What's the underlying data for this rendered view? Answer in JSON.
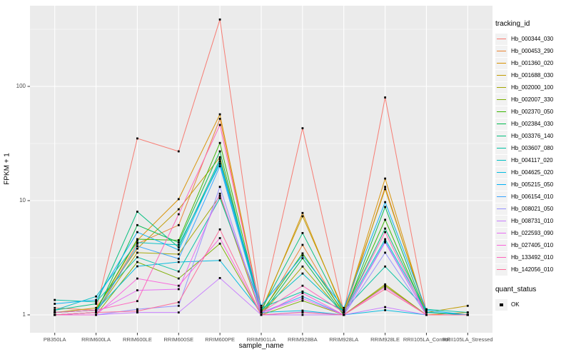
{
  "figure": {
    "panel_bg": "#EBEBEB",
    "grid_color": "#FFFFFF",
    "axis_text_color": "#4D4D4D",
    "tick_mark_color": "#333333",
    "marker_color": "#000000",
    "legend_key_bg": "#F2F2F2"
  },
  "axes": {
    "x_title": "sample_name",
    "y_title": "FPKM + 1",
    "y_tick_values": [
      1,
      10,
      100
    ],
    "y_tick_labels": [
      "1",
      "10",
      "100"
    ],
    "y_minor_values": [
      3.1623,
      31.623,
      316.23
    ]
  },
  "legend": {
    "tracking_title": "tracking_id",
    "quant_title": "quant_status",
    "quant_items": [
      {
        "label": "OK",
        "marker": "black-square"
      }
    ]
  },
  "chart_data": {
    "type": "line",
    "x_scale": "categorical",
    "y_scale": "log10",
    "ylim": [
      0.71,
      500
    ],
    "grid": "on",
    "legend_position": "right",
    "marker": "small-black-square",
    "xlabel": "sample_name",
    "ylabel": "FPKM + 1",
    "categories": [
      "PB350LA",
      "RRIM600LA",
      "RRIM600LE",
      "RRIM600SE",
      "RRIM600PE",
      "RRIM901LA",
      "RRIM928BA",
      "RRIM928LA",
      "RRIM928LE",
      "RRII105LA_Control",
      "RRII105LA_Stressed"
    ],
    "series": [
      {
        "name": "Hb_000344_030",
        "color": "#F8766D",
        "values": [
          1.15,
          1.1,
          35,
          27,
          385,
          1.1,
          43,
          1.05,
          80,
          1.05,
          1.0
        ]
      },
      {
        "name": "Hb_000453_290",
        "color": "#EA8331",
        "values": [
          1.0,
          1.05,
          4.2,
          6.1,
          52,
          1.0,
          4.1,
          1.0,
          13.2,
          1.0,
          1.0
        ]
      },
      {
        "name": "Hb_001360_020",
        "color": "#D89000",
        "values": [
          1.05,
          1.1,
          4.5,
          10.3,
          57,
          1.05,
          7.8,
          1.05,
          15.6,
          1.0,
          1.05
        ]
      },
      {
        "name": "Hb_001688_030",
        "color": "#C09B00",
        "values": [
          1.05,
          1.15,
          3.8,
          8.4,
          24,
          1.1,
          7.3,
          1.1,
          12.6,
          1.05,
          1.2
        ]
      },
      {
        "name": "Hb_002000_100",
        "color": "#A3A500",
        "values": [
          1.0,
          1.05,
          3.5,
          3.4,
          11,
          1.0,
          2.65,
          1.0,
          1.85,
          1.0,
          1.0
        ]
      },
      {
        "name": "Hb_002007_330",
        "color": "#7CAE00",
        "values": [
          1.0,
          1.0,
          2.9,
          2.08,
          4.2,
          1.0,
          1.33,
          1.0,
          1.8,
          1.0,
          1.0
        ]
      },
      {
        "name": "Hb_002370_050",
        "color": "#39B600",
        "values": [
          1.05,
          1.1,
          4.6,
          4.5,
          32,
          1.05,
          3.45,
          1.05,
          6.8,
          1.0,
          1.0
        ]
      },
      {
        "name": "Hb_002384_030",
        "color": "#00BB4E",
        "values": [
          1.0,
          1.05,
          6.1,
          4.3,
          27,
          1.0,
          3.13,
          1.0,
          8.8,
          1.0,
          1.0
        ]
      },
      {
        "name": "Hb_003376_140",
        "color": "#00BF7D",
        "values": [
          1.1,
          1.25,
          8.0,
          3.9,
          23,
          1.1,
          5.2,
          1.05,
          5.7,
          1.05,
          1.0
        ]
      },
      {
        "name": "Hb_003607_080",
        "color": "#00C1A3",
        "values": [
          1.35,
          1.3,
          3.2,
          2.4,
          10.5,
          1.15,
          1.6,
          1.1,
          2.65,
          1.12,
          1.05
        ]
      },
      {
        "name": "Hb_004117_020",
        "color": "#00BFC4",
        "values": [
          1.1,
          1.45,
          4.3,
          4.1,
          21,
          1.1,
          2.3,
          1.05,
          4.6,
          1.06,
          1.0
        ]
      },
      {
        "name": "Hb_004625_020",
        "color": "#00BAE0",
        "values": [
          1.05,
          1.1,
          2.66,
          2.9,
          3.0,
          1.05,
          1.09,
          1.0,
          1.1,
          1.0,
          1.0
        ]
      },
      {
        "name": "Hb_005215_050",
        "color": "#00B0F6",
        "values": [
          1.25,
          1.35,
          5.3,
          3.7,
          22,
          1.2,
          3.3,
          1.15,
          9.7,
          1.1,
          1.0
        ]
      },
      {
        "name": "Hb_006154_010",
        "color": "#35A2FF",
        "values": [
          1.0,
          1.05,
          4.0,
          3.1,
          20,
          1.05,
          1.45,
          1.0,
          4.4,
          1.0,
          1.0
        ]
      },
      {
        "name": "Hb_008021_050",
        "color": "#9590FF",
        "values": [
          1.0,
          1.0,
          1.12,
          1.2,
          13.2,
          1.0,
          1.06,
          1.0,
          3.5,
          1.0,
          1.0
        ]
      },
      {
        "name": "Hb_008731_010",
        "color": "#C77CFF",
        "values": [
          1.0,
          1.0,
          1.05,
          1.05,
          2.1,
          1.0,
          1.0,
          1.0,
          1.17,
          1.0,
          1.0
        ]
      },
      {
        "name": "Hb_022593_090",
        "color": "#E76BF3",
        "values": [
          1.0,
          1.05,
          1.64,
          1.68,
          11.5,
          1.05,
          1.39,
          1.0,
          4.3,
          1.0,
          1.0
        ]
      },
      {
        "name": "Hb_027405_010",
        "color": "#FA62DB",
        "values": [
          1.0,
          1.0,
          2.08,
          1.8,
          4.7,
          1.0,
          1.55,
          1.0,
          1.75,
          1.0,
          1.0
        ]
      },
      {
        "name": "Hb_133492_010",
        "color": "#FF62BC",
        "values": [
          1.05,
          1.1,
          1.32,
          7.6,
          46,
          1.05,
          1.8,
          1.05,
          5.3,
          1.0,
          1.0
        ]
      },
      {
        "name": "Hb_142056_010",
        "color": "#FF6A98",
        "values": [
          1.0,
          1.05,
          1.08,
          1.29,
          5.6,
          1.0,
          1.05,
          1.0,
          1.68,
          1.0,
          1.0
        ]
      }
    ]
  }
}
